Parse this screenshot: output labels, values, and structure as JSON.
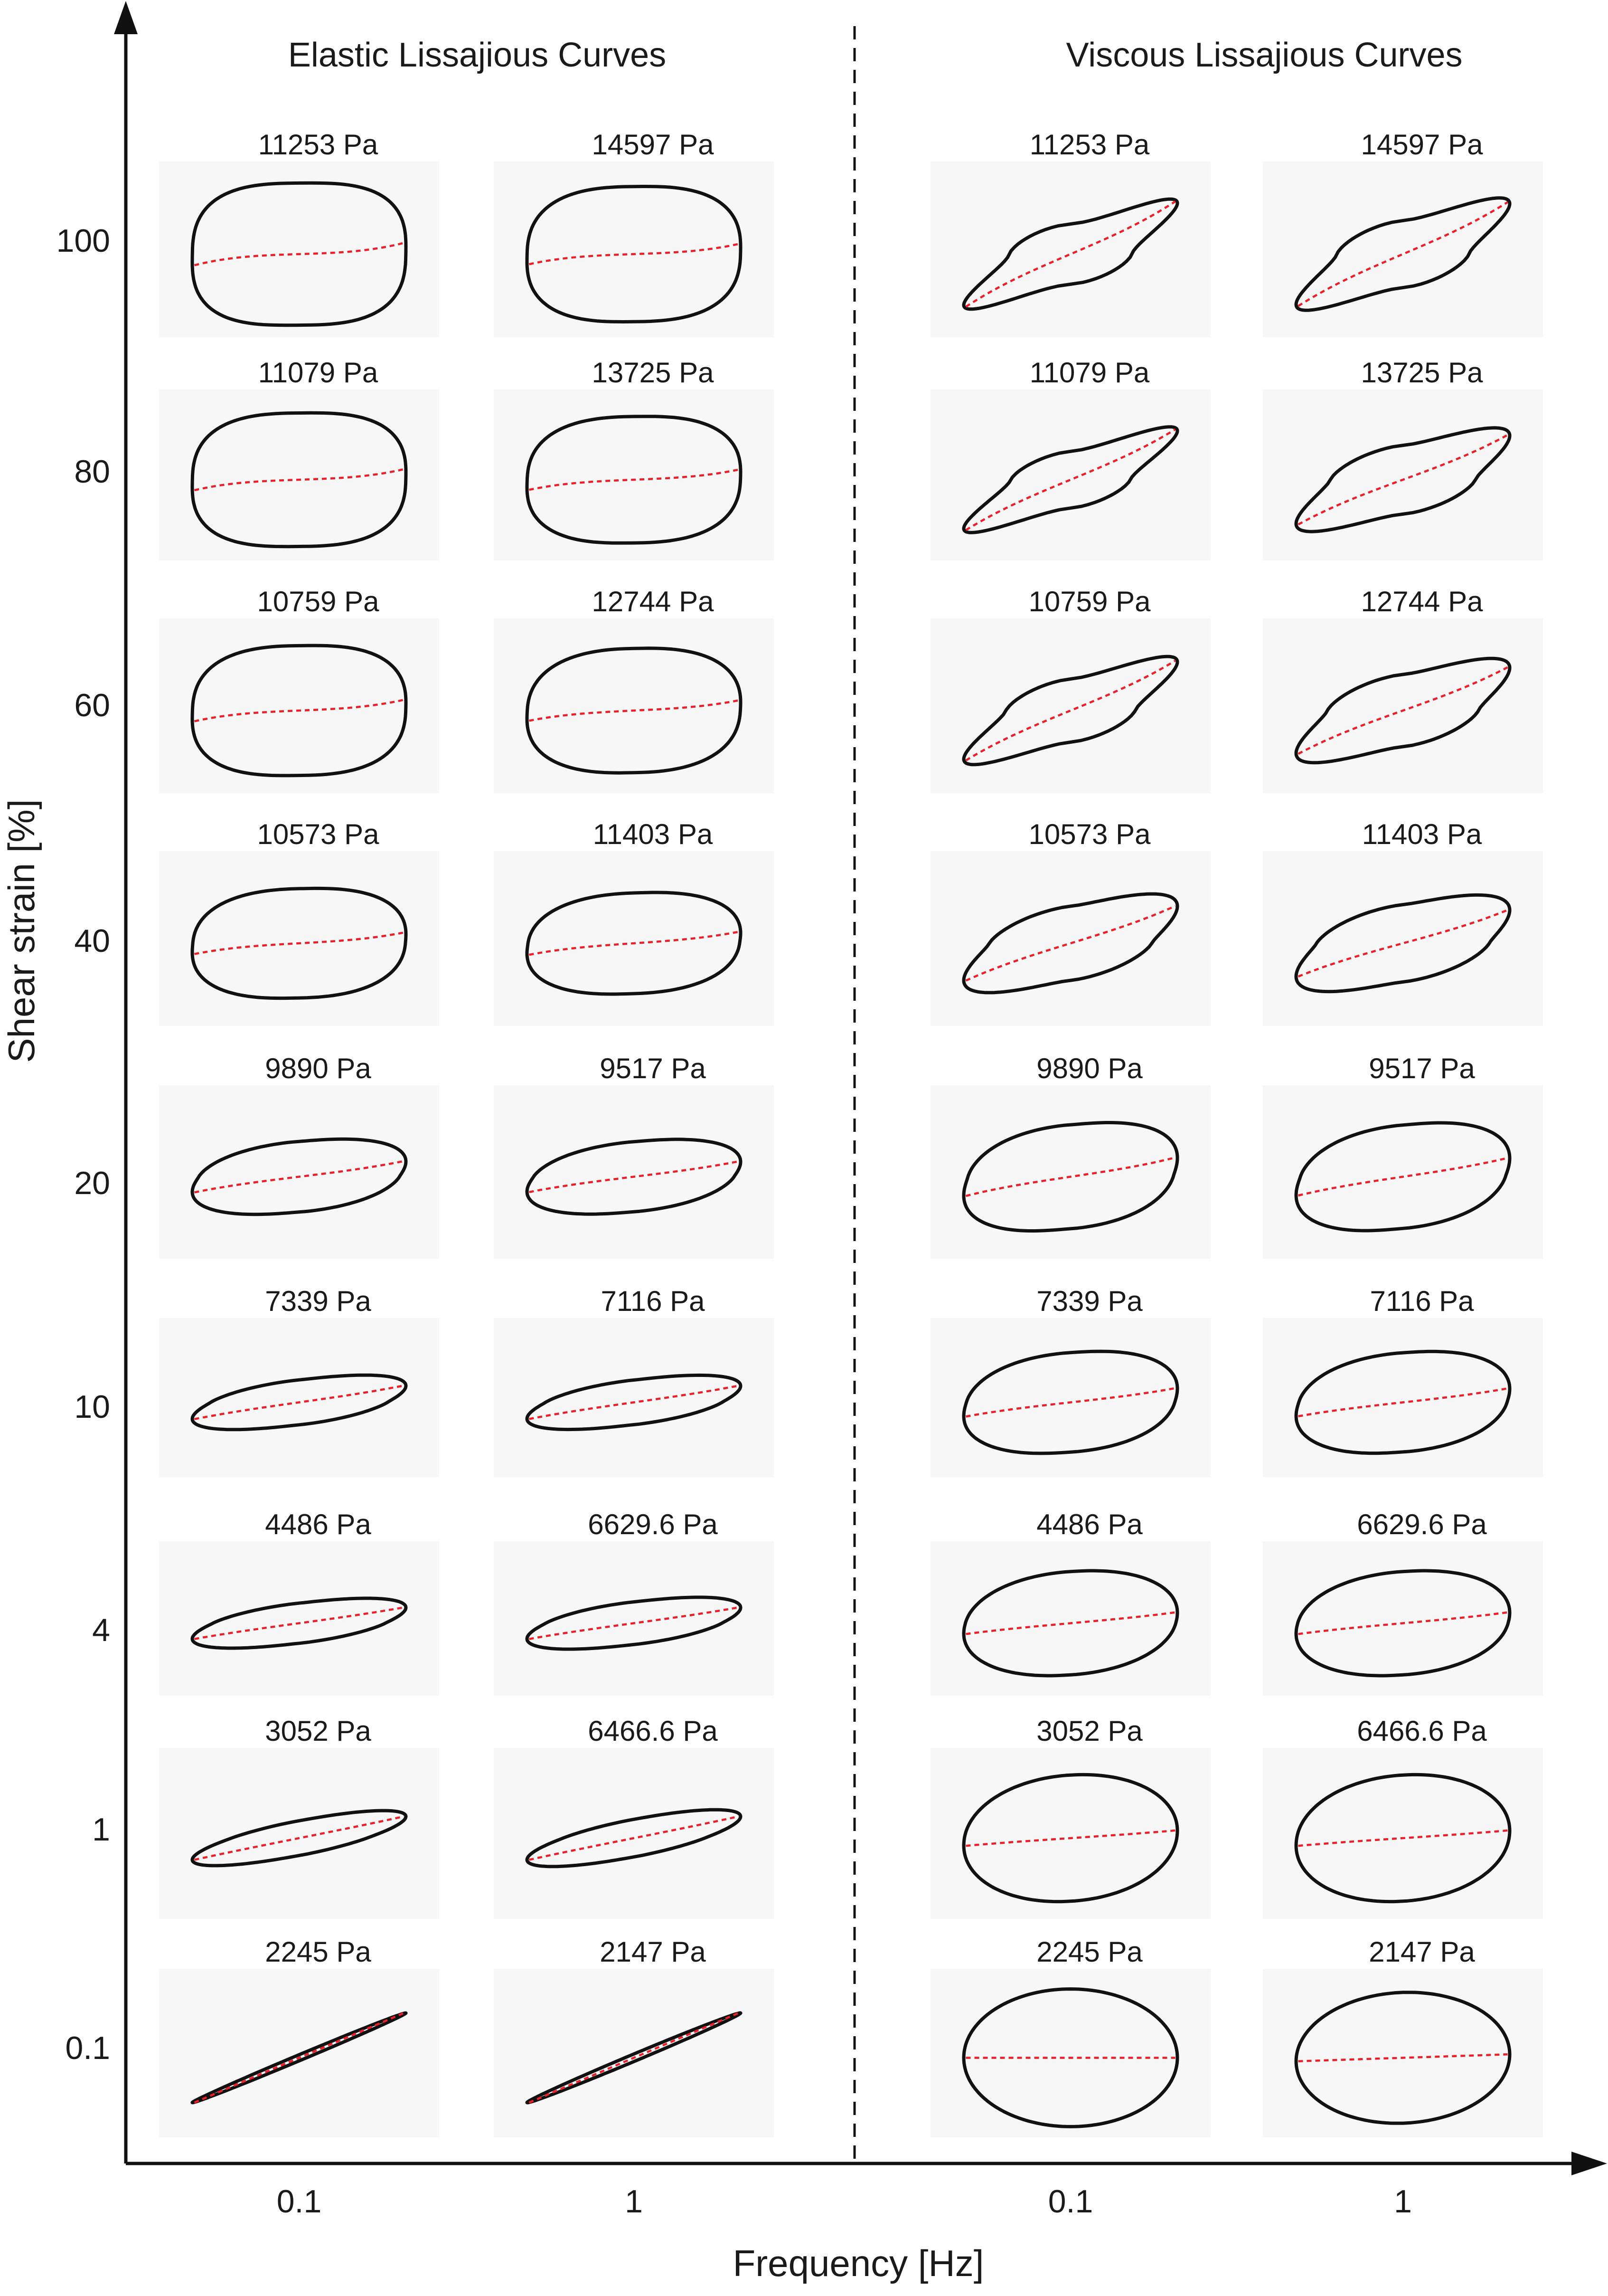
{
  "titles": {
    "elastic": "Elastic Lissajious Curves",
    "viscous": "Viscous Lissajious Curves"
  },
  "axes": {
    "y_label": "Shear strain [%]",
    "x_label": "Frequency [Hz]",
    "y_ticks": [
      "100",
      "80",
      "60",
      "40",
      "20",
      "10",
      "4",
      "1",
      "0.1"
    ],
    "x_ticks": [
      "0.1",
      "1",
      "0.1",
      "1"
    ]
  },
  "colors": {
    "loop": "#111111",
    "midline": "#e8202a"
  },
  "elastic": {
    "freq_0_1": [
      "11253 Pa",
      "11079 Pa",
      "10759 Pa",
      "10573 Pa",
      "9890 Pa",
      "7339 Pa",
      "4486 Pa",
      "3052 Pa",
      "2245 Pa"
    ],
    "freq_1": [
      "14597 Pa",
      "13725 Pa",
      "12744 Pa",
      "11403 Pa",
      "9517 Pa",
      "7116 Pa",
      "6629.6 Pa",
      "6466.6 Pa",
      "2147 Pa"
    ]
  },
  "viscous": {
    "freq_0_1": [
      "11253 Pa",
      "11079 Pa",
      "10759 Pa",
      "10573 Pa",
      "9890 Pa",
      "7339 Pa",
      "4486 Pa",
      "3052 Pa",
      "2245 Pa"
    ],
    "freq_1": [
      "14597 Pa",
      "13725 Pa",
      "12744 Pa",
      "11403 Pa",
      "9517 Pa",
      "7116 Pa",
      "6629.6 Pa",
      "6466.6 Pa",
      "2147 Pa"
    ]
  }
}
